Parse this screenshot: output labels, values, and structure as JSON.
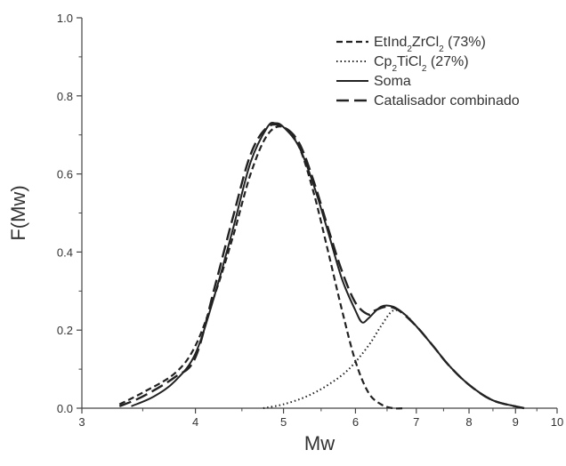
{
  "chart_data": {
    "type": "line",
    "xlabel": "Mw",
    "ylabel": "F(Mw)",
    "xscale": "log",
    "xlim": [
      3,
      10
    ],
    "ylim": [
      0,
      1.0
    ],
    "x_ticks": [
      3,
      4,
      5,
      6,
      7,
      8,
      9,
      10
    ],
    "x_tick_labels": [
      "3",
      "4",
      "5",
      "6",
      "7",
      "8",
      "9",
      "10"
    ],
    "y_ticks": [
      0.0,
      0.2,
      0.4,
      0.6,
      0.8,
      1.0
    ],
    "y_tick_labels": [
      "0.0",
      "0.2",
      "0.4",
      "0.6",
      "0.8",
      "1.0"
    ],
    "grid": false,
    "legend_position": "top-right",
    "series": [
      {
        "name": "EtInd2ZrCl2 (73%)",
        "legend": {
          "pre": "EtInd",
          "sub1": "2",
          "mid": "ZrCl",
          "sub2": "2",
          "post": " (73%)"
        },
        "style": "short-dash",
        "x": [
          3.3,
          3.5,
          3.8,
          4.0,
          4.2,
          4.4,
          4.6,
          4.8,
          5.0,
          5.2,
          5.4,
          5.6,
          5.8,
          6.0,
          6.2,
          6.4,
          6.6,
          6.8
        ],
        "y": [
          0.01,
          0.04,
          0.09,
          0.16,
          0.29,
          0.44,
          0.6,
          0.7,
          0.72,
          0.67,
          0.55,
          0.4,
          0.25,
          0.12,
          0.04,
          0.01,
          0.0,
          0.0
        ]
      },
      {
        "name": "Cp2TiCl2 (27%)",
        "legend": {
          "pre": "Cp",
          "sub1": "2",
          "mid": "TiCl",
          "sub2": "2",
          "post": " (27%)"
        },
        "style": "dotted",
        "x": [
          4.75,
          5.0,
          5.3,
          5.6,
          5.9,
          6.2,
          6.4,
          6.6,
          6.8,
          7.0,
          7.3,
          7.6,
          8.0,
          8.5,
          9.0
        ],
        "y": [
          0.0,
          0.01,
          0.03,
          0.06,
          0.1,
          0.16,
          0.21,
          0.25,
          0.24,
          0.21,
          0.16,
          0.11,
          0.06,
          0.02,
          0.005
        ]
      },
      {
        "name": "Soma",
        "legend": {
          "pre": "Soma"
        },
        "style": "solid",
        "x": [
          3.4,
          3.6,
          3.8,
          4.0,
          4.2,
          4.4,
          4.6,
          4.8,
          4.9,
          5.0,
          5.2,
          5.4,
          5.6,
          5.8,
          6.0,
          6.1,
          6.2,
          6.4,
          6.6,
          6.8,
          7.0,
          7.3,
          7.6,
          8.0,
          8.5,
          9.0
        ],
        "y": [
          0.005,
          0.03,
          0.07,
          0.14,
          0.29,
          0.46,
          0.63,
          0.72,
          0.73,
          0.72,
          0.67,
          0.57,
          0.45,
          0.33,
          0.25,
          0.22,
          0.23,
          0.26,
          0.26,
          0.24,
          0.21,
          0.16,
          0.11,
          0.06,
          0.02,
          0.005
        ]
      },
      {
        "name": "Catalisador combinado",
        "legend": {
          "pre": "Catalisador combinado"
        },
        "style": "long-dash",
        "x": [
          3.3,
          3.5,
          3.8,
          4.0,
          4.2,
          4.4,
          4.6,
          4.8,
          5.0,
          5.2,
          5.4,
          5.6,
          5.8,
          6.0,
          6.2,
          6.3,
          6.5,
          6.7,
          7.0,
          7.3,
          7.6,
          8.0,
          8.5,
          9.2
        ],
        "y": [
          0.005,
          0.03,
          0.08,
          0.13,
          0.31,
          0.49,
          0.65,
          0.72,
          0.72,
          0.68,
          0.58,
          0.46,
          0.35,
          0.27,
          0.24,
          0.25,
          0.26,
          0.25,
          0.21,
          0.16,
          0.11,
          0.06,
          0.02,
          0.0
        ]
      }
    ]
  }
}
